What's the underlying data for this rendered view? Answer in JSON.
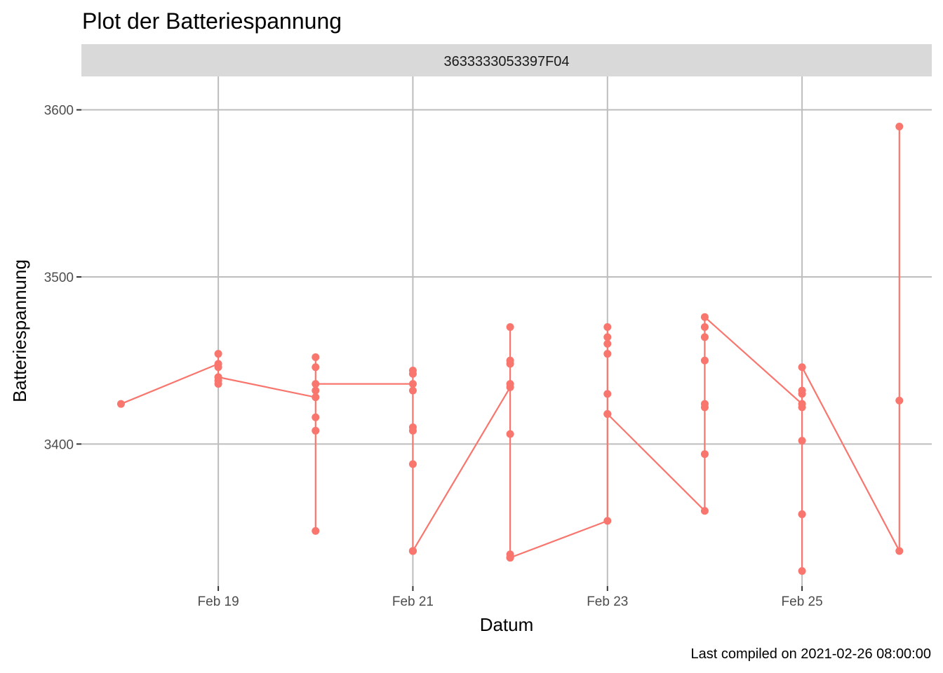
{
  "chart_data": {
    "type": "line",
    "title": "Plot der Batteriespannung",
    "xlabel": "Datum",
    "ylabel": "Batteriespannung",
    "caption": "Last compiled on 2021-02-26 08:00:00",
    "facet_label": "3633333053397F04",
    "x_tick_labels": [
      "Feb 19",
      "Feb 21",
      "Feb 23",
      "Feb 25"
    ],
    "x_tick_dates": [
      "2021-02-19",
      "2021-02-21",
      "2021-02-23",
      "2021-02-25"
    ],
    "y_tick_labels": [
      "3400",
      "3500",
      "3600"
    ],
    "y_ticks": [
      3400,
      3500,
      3600
    ],
    "xlim": [
      "2021-02-17T14:14",
      "2021-02-26T08:00"
    ],
    "ylim": [
      3315,
      3620
    ],
    "grid": true,
    "legend": "none",
    "color": "#F8766D",
    "series": [
      {
        "x": [
          "2021-02-18",
          "2021-02-19",
          "2021-02-19",
          "2021-02-19",
          "2021-02-19",
          "2021-02-19",
          "2021-02-19",
          "2021-02-19",
          "2021-02-20",
          "2021-02-20",
          "2021-02-20",
          "2021-02-20",
          "2021-02-20",
          "2021-02-20",
          "2021-02-20",
          "2021-02-20",
          "2021-02-21",
          "2021-02-21",
          "2021-02-21",
          "2021-02-21",
          "2021-02-21",
          "2021-02-21",
          "2021-02-21",
          "2021-02-21",
          "2021-02-21",
          "2021-02-21",
          "2021-02-22",
          "2021-02-22",
          "2021-02-22",
          "2021-02-22",
          "2021-02-22",
          "2021-02-22",
          "2021-02-22",
          "2021-02-22",
          "2021-02-22",
          "2021-02-22",
          "2021-02-23",
          "2021-02-23",
          "2021-02-23",
          "2021-02-23",
          "2021-02-23",
          "2021-02-23",
          "2021-02-23",
          "2021-02-23",
          "2021-02-24",
          "2021-02-24",
          "2021-02-24",
          "2021-02-24",
          "2021-02-24",
          "2021-02-24",
          "2021-02-24",
          "2021-02-24",
          "2021-02-25",
          "2021-02-25",
          "2021-02-25",
          "2021-02-25",
          "2021-02-25",
          "2021-02-25",
          "2021-02-25",
          "2021-02-25",
          "2021-02-25",
          "2021-02-26",
          "2021-02-26",
          "2021-02-26"
        ],
        "y": [
          3424,
          3448,
          3454,
          3446,
          3440,
          3438,
          3436,
          3440,
          3428,
          3348,
          3408,
          3416,
          3432,
          3452,
          3446,
          3436,
          3436,
          3444,
          3442,
          3432,
          3410,
          3408,
          3388,
          3336,
          3336,
          3336,
          3434,
          3436,
          3448,
          3450,
          3470,
          3406,
          3334,
          3332,
          3332,
          3332,
          3354,
          3470,
          3464,
          3460,
          3454,
          3430,
          3418,
          3418,
          3360,
          3394,
          3422,
          3424,
          3450,
          3464,
          3470,
          3476,
          3424,
          3422,
          3402,
          3358,
          3358,
          3324,
          3430,
          3432,
          3446,
          3336,
          3590,
          3426
        ]
      }
    ]
  }
}
